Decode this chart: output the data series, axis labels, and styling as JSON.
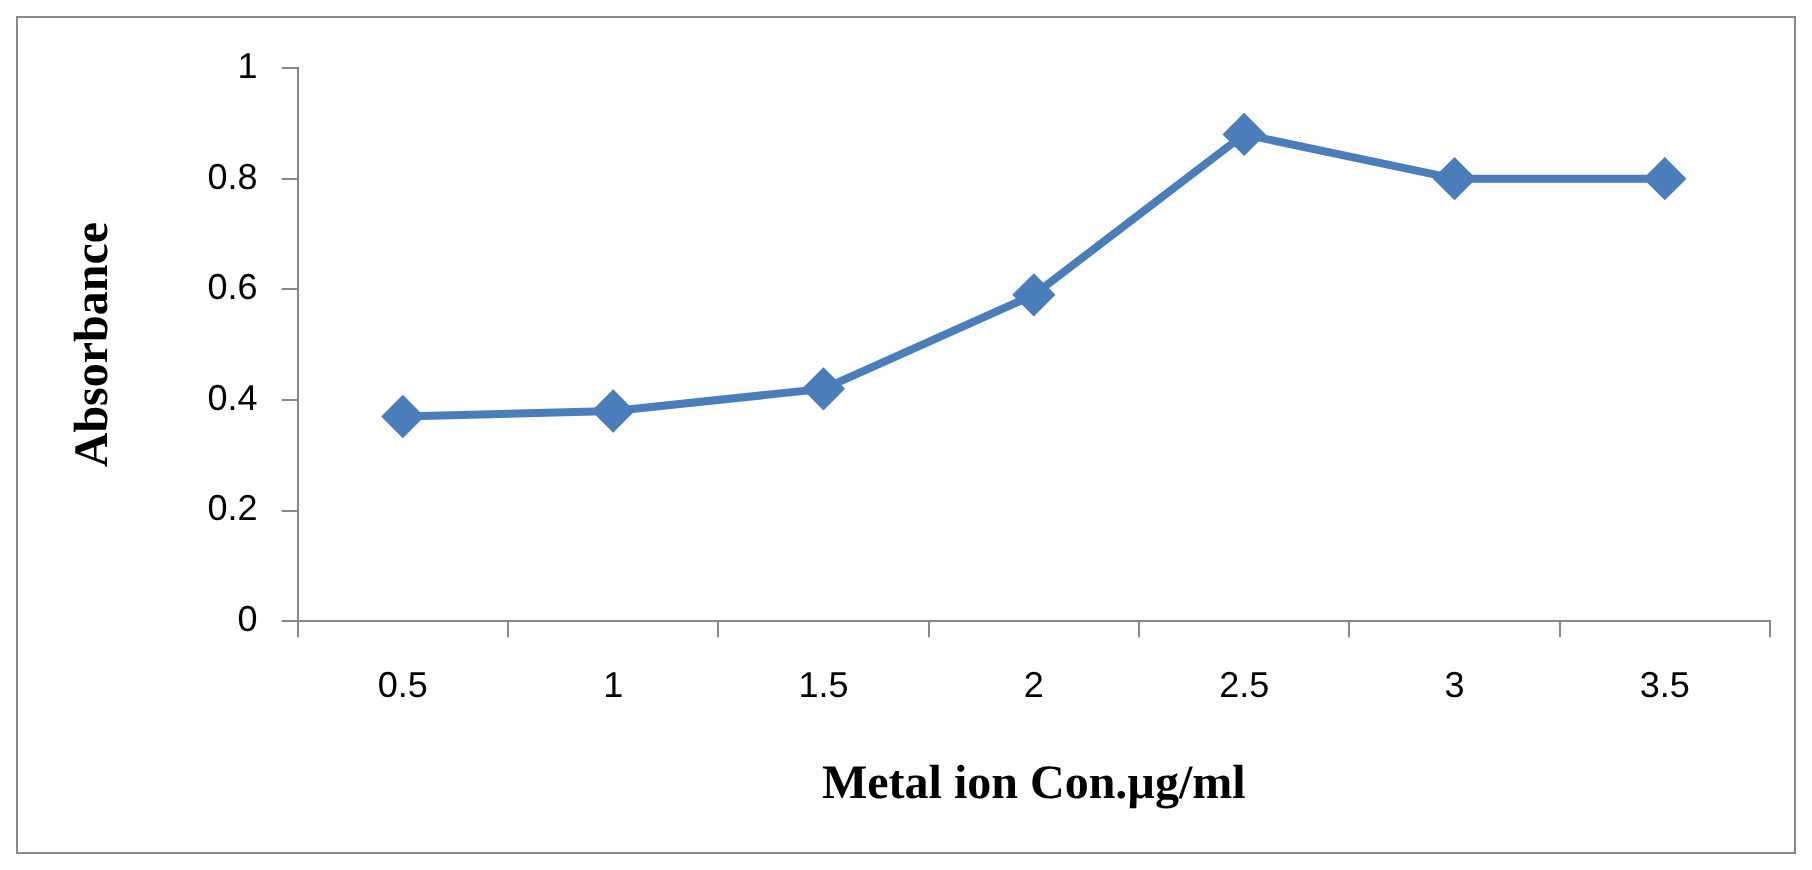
{
  "chart_data": {
    "type": "line",
    "xlabel": "Metal ion Con.µg/ml",
    "ylabel": "Absorbance",
    "categories": [
      "0.5",
      "1",
      "1.5",
      "2",
      "2.5",
      "3",
      "3.5"
    ],
    "series": [
      {
        "color": "#4a7ebb",
        "values": [
          0.37,
          0.38,
          0.42,
          0.59,
          0.88,
          0.8,
          0.8
        ]
      }
    ],
    "ylim": [
      0,
      1
    ],
    "yticks": [
      0,
      0.2,
      0.4,
      0.6,
      0.8,
      1
    ],
    "marker": "diamond",
    "line_style": "solid",
    "legend": false,
    "grid": false
  }
}
